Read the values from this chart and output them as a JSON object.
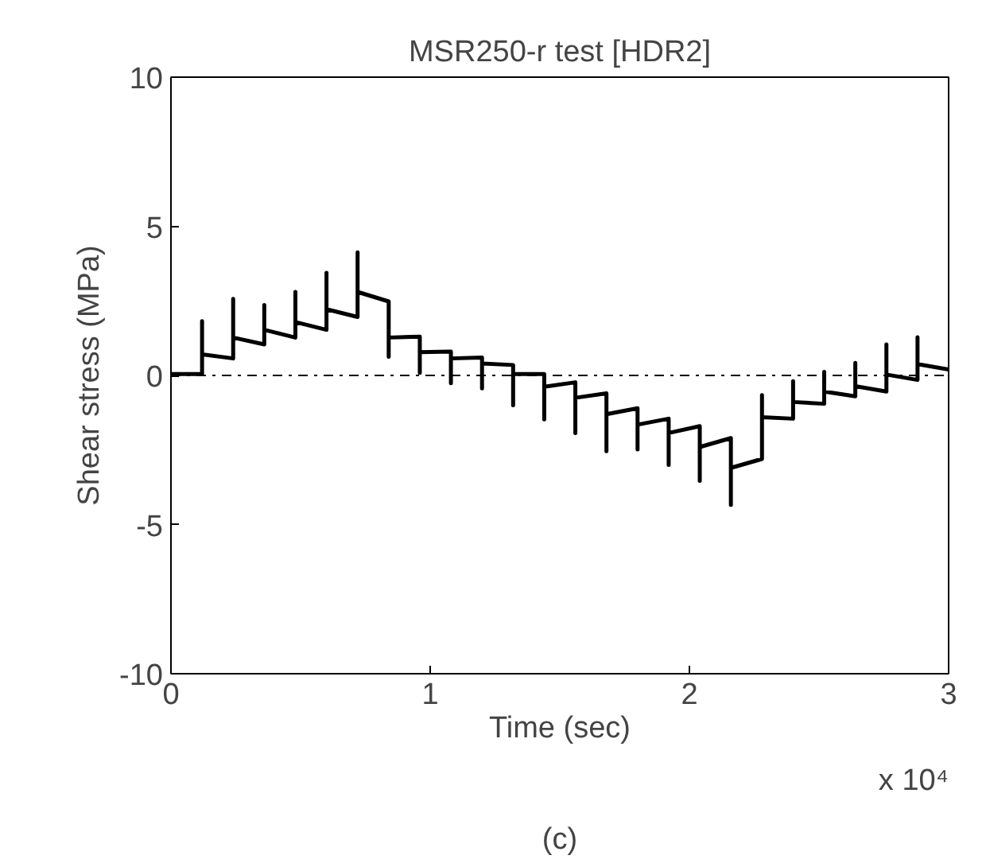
{
  "chart_data": {
    "type": "line",
    "title": "MSR250-r test [HDR2]",
    "xlabel": "Time (sec)",
    "ylabel": "Shear stress (MPa)",
    "xlim": [
      0,
      3
    ],
    "ylim": [
      -10,
      10
    ],
    "xticks": [
      0,
      1,
      2,
      3
    ],
    "yticks": [
      {
        "value": -10,
        "label": "-10"
      },
      -5,
      0,
      5,
      10
    ],
    "grid": false,
    "marker": "none",
    "line_style": "solid",
    "ref_lines": [
      {
        "axis": "y",
        "value": 0,
        "label": null,
        "color": "#000000",
        "line_style": "dashdot"
      }
    ],
    "annotations": [
      "x 10⁴",
      "(c)"
    ],
    "series": [
      {
        "color": "#000000",
        "x": [
          0,
          0.12,
          0.12,
          0.12,
          0.24,
          0.24,
          0.24,
          0.36,
          0.36,
          0.36,
          0.48,
          0.48,
          0.48,
          0.6,
          0.6,
          0.6,
          0.72,
          0.72,
          0.72,
          0.84,
          0.84,
          0.84,
          0.96,
          0.96,
          0.96,
          1.08,
          1.08,
          1.08,
          1.2,
          1.2,
          1.2,
          1.32,
          1.32,
          1.32,
          1.44,
          1.44,
          1.44,
          1.56,
          1.56,
          1.56,
          1.68,
          1.68,
          1.68,
          1.8,
          1.8,
          1.8,
          1.92,
          1.92,
          1.92,
          2.04,
          2.04,
          2.04,
          2.16,
          2.16,
          2.16,
          2.28,
          2.28,
          2.28,
          2.4,
          2.4,
          2.4,
          2.52,
          2.52,
          2.52,
          2.64,
          2.64,
          2.64,
          2.76,
          2.76,
          2.76,
          2.88,
          2.88,
          2.88,
          3.0
        ],
        "values": [
          0.05,
          0.05,
          1.82,
          0.71,
          0.57,
          2.57,
          1.27,
          1.04,
          2.36,
          1.53,
          1.27,
          2.8,
          1.79,
          1.53,
          3.44,
          2.22,
          1.96,
          4.13,
          2.8,
          2.48,
          0.63,
          1.27,
          1.3,
          0.09,
          0.78,
          0.8,
          -0.26,
          0.57,
          0.6,
          -0.43,
          0.4,
          0.35,
          -1.0,
          0.05,
          0.05,
          -1.47,
          -0.38,
          -0.23,
          -1.93,
          -0.75,
          -0.6,
          -2.54,
          -1.3,
          -1.1,
          -2.48,
          -1.65,
          -1.45,
          -3.0,
          -1.93,
          -1.7,
          -3.53,
          -2.4,
          -2.1,
          -4.34,
          -3.1,
          -2.8,
          -0.66,
          -1.4,
          -1.45,
          -0.19,
          -0.89,
          -0.95,
          0.12,
          -0.54,
          -0.7,
          0.42,
          -0.36,
          -0.54,
          1.04,
          0.03,
          -0.15,
          1.28,
          0.38,
          0.2
        ]
      }
    ]
  }
}
